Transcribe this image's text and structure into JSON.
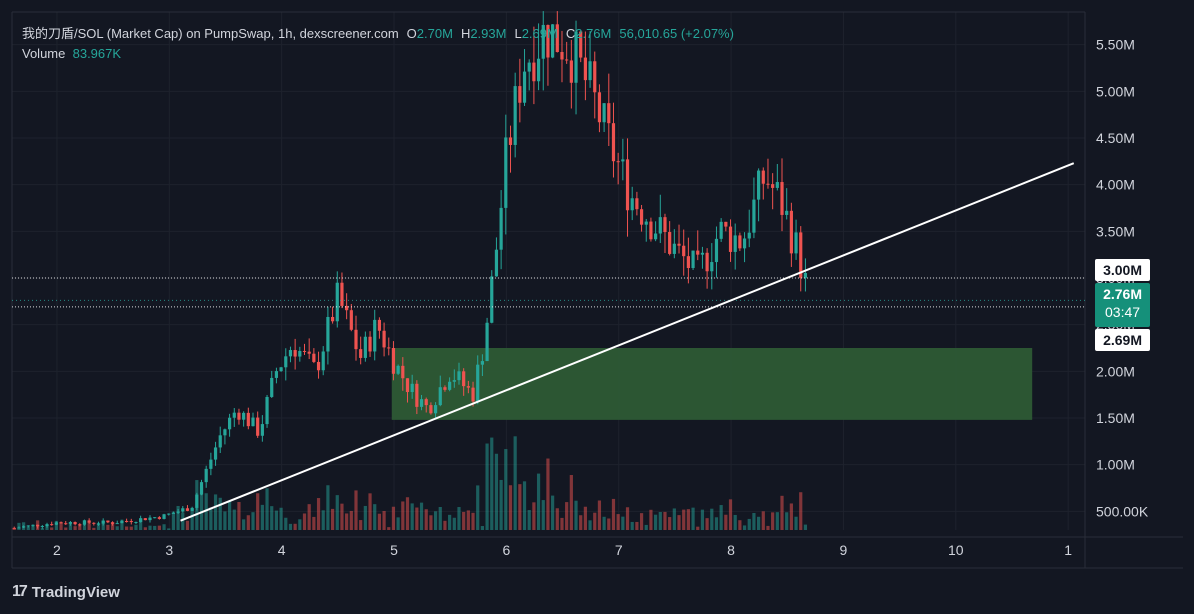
{
  "legend": {
    "symbol": "我的刀盾/SOL (Market Cap) on PumpSwap, 1h, dexscreener.com",
    "open_label": "O",
    "open": "2.70M",
    "high_label": "H",
    "high": "2.93M",
    "low_label": "L",
    "low": "2.69M",
    "close_label": "C",
    "close": "2.76M",
    "change": "56,010.65 (+2.07%)",
    "volume_label": "Volume",
    "volume": "83.967K"
  },
  "tags": {
    "level_top": "3.00M",
    "current": "2.76M",
    "countdown": "03:47",
    "level_bottom": "2.69M"
  },
  "branding": {
    "logo": "17",
    "name": "TradingView"
  },
  "colors": {
    "up": "#26a69a",
    "down": "#ef5350",
    "zone": "#2d5a35",
    "background": "#131722"
  },
  "chart_data": {
    "type": "candlestick",
    "x_ticks": [
      "2",
      "3",
      "4",
      "5",
      "6",
      "7",
      "8",
      "9",
      "10",
      "1"
    ],
    "x_tick_values": [
      2,
      3,
      4,
      5,
      6,
      7,
      8,
      9,
      10,
      11
    ],
    "y_ticks": [
      "500.00K",
      "1.00M",
      "1.50M",
      "2.00M",
      "2.50M",
      "3.00M",
      "3.50M",
      "4.00M",
      "4.50M",
      "5.00M",
      "5.50M"
    ],
    "y_tick_values": [
      0.5,
      1.0,
      1.5,
      2.0,
      2.5,
      3.0,
      3.5,
      4.0,
      4.5,
      5.0,
      5.5
    ],
    "ylim": [
      0.3,
      5.85
    ],
    "xlim": [
      1.6,
      11.15
    ],
    "y_unit": "M",
    "candle_keyframes": [
      [
        1.6,
        0.32
      ],
      [
        2.0,
        0.38
      ],
      [
        2.5,
        0.38
      ],
      [
        2.95,
        0.45
      ],
      [
        3.2,
        0.55
      ],
      [
        3.45,
        1.3
      ],
      [
        3.6,
        1.6
      ],
      [
        3.8,
        1.35
      ],
      [
        3.95,
        2.0
      ],
      [
        4.1,
        2.3
      ],
      [
        4.3,
        2.0
      ],
      [
        4.5,
        2.8
      ],
      [
        4.7,
        2.15
      ],
      [
        4.85,
        2.5
      ],
      [
        5.0,
        2.1
      ],
      [
        5.15,
        1.8
      ],
      [
        5.3,
        1.6
      ],
      [
        5.5,
        2.0
      ],
      [
        5.7,
        1.75
      ],
      [
        5.8,
        2.3
      ],
      [
        5.9,
        3.2
      ],
      [
        6.0,
        4.3
      ],
      [
        6.15,
        5.3
      ],
      [
        6.35,
        5.65
      ],
      [
        6.55,
        5.5
      ],
      [
        6.75,
        5.0
      ],
      [
        6.9,
        4.5
      ],
      [
        7.1,
        3.9
      ],
      [
        7.3,
        3.6
      ],
      [
        7.5,
        3.3
      ],
      [
        7.7,
        3.05
      ],
      [
        7.9,
        3.5
      ],
      [
        8.1,
        3.4
      ],
      [
        8.3,
        4.1
      ],
      [
        8.45,
        3.8
      ],
      [
        8.6,
        3.25
      ],
      [
        8.7,
        2.76
      ]
    ],
    "volume_max": 0.96,
    "trendline": {
      "x1": 3.1,
      "y1": 0.4,
      "x2": 11.05,
      "y2": 4.23
    },
    "zone": {
      "x1": 4.98,
      "x2": 10.68,
      "y_low": 1.48,
      "y_high": 2.25
    },
    "levels": [
      3.0,
      2.69
    ],
    "last_close": 2.76
  }
}
